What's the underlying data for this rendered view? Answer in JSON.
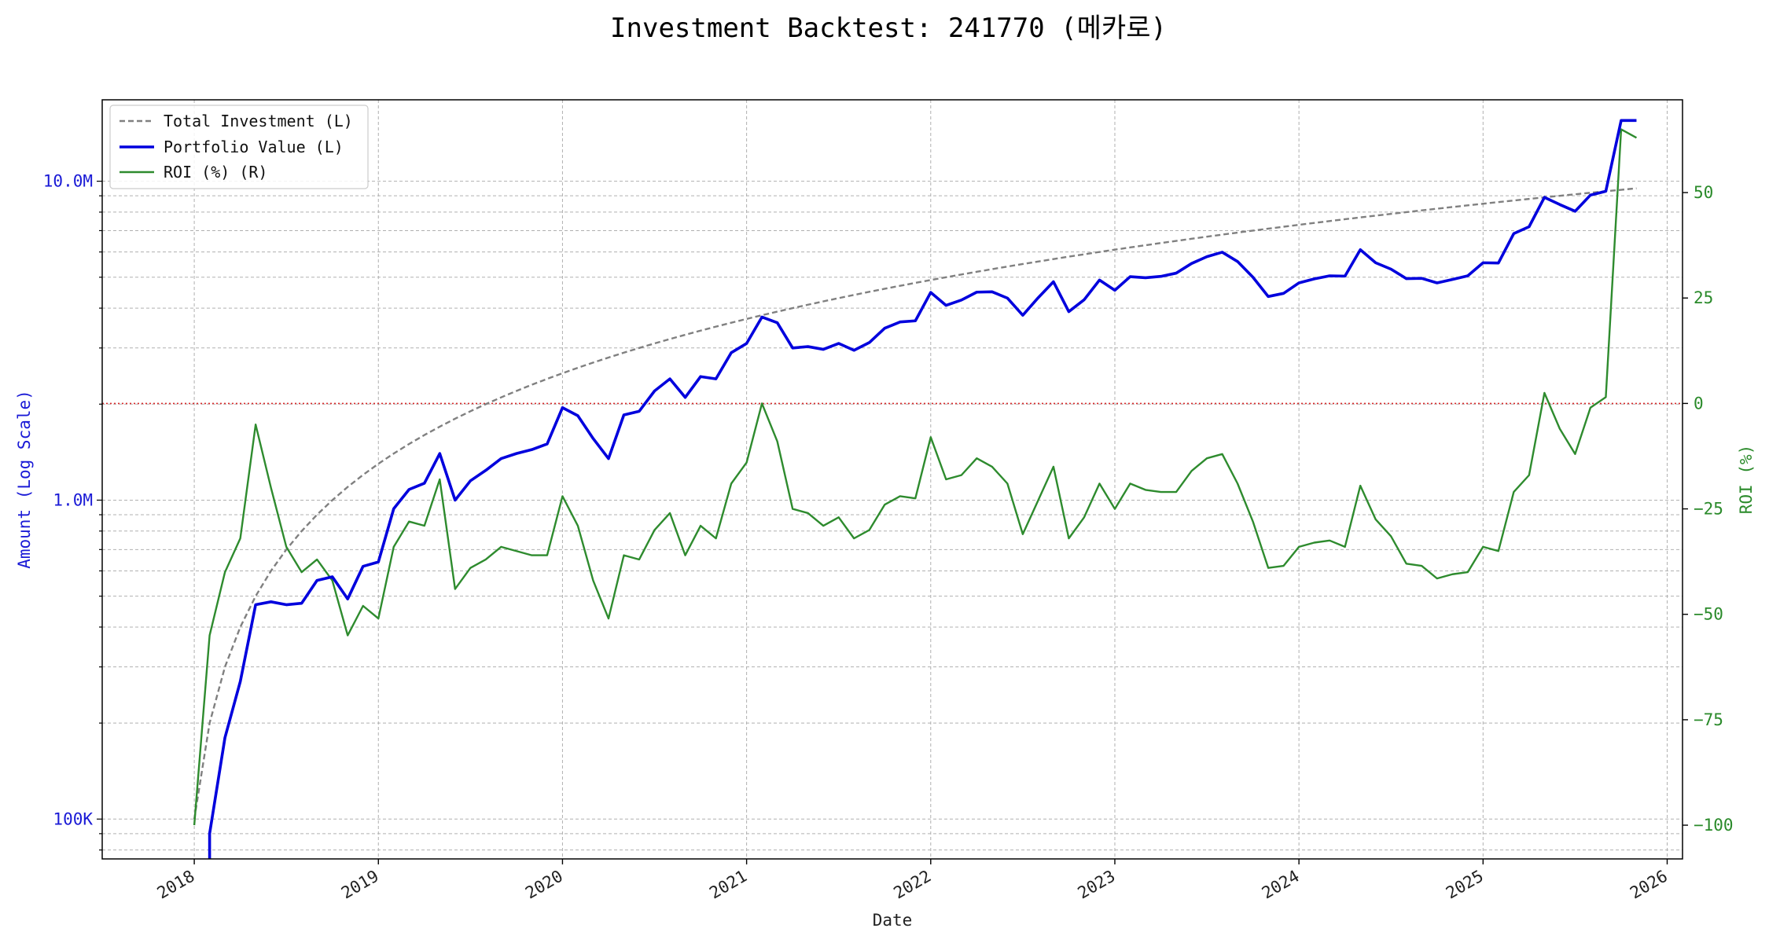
{
  "chart_data": {
    "type": "line",
    "title": "Investment Backtest: 241770 (메카로)",
    "xlabel": "Date",
    "ylabel_left": "Amount (Log Scale)",
    "ylabel_right": "ROI (%)",
    "left_scale": "log",
    "left_ylim": [
      75000,
      18000000
    ],
    "right_ylim": [
      -108,
      72
    ],
    "xlim": [
      "2017-07-01",
      "2026-02-01"
    ],
    "grid": true,
    "legend_position": "upper-left",
    "zero_line": {
      "axis": "right",
      "value": 0,
      "color": "#d62728",
      "style": "dotted"
    },
    "x_ticks": [
      "2018",
      "2019",
      "2020",
      "2021",
      "2022",
      "2023",
      "2024",
      "2025",
      "2026"
    ],
    "left_ticks": [
      {
        "value": 100000,
        "label": "100K"
      },
      {
        "value": 1000000,
        "label": "1.0M"
      },
      {
        "value": 10000000,
        "label": "10.0M"
      }
    ],
    "right_ticks": [
      {
        "value": -100,
        "label": "−100"
      },
      {
        "value": -75,
        "label": "−75"
      },
      {
        "value": -50,
        "label": "−50"
      },
      {
        "value": -25,
        "label": "−25"
      },
      {
        "value": 0,
        "label": "0"
      },
      {
        "value": 25,
        "label": "25"
      },
      {
        "value": 50,
        "label": "50"
      }
    ],
    "series": [
      {
        "name": "Total Investment (L)",
        "axis": "left",
        "color": "#808080",
        "style": "dashed",
        "x": [
          "2018-01",
          "2018-02",
          "2018-03",
          "2018-04",
          "2018-05",
          "2018-06",
          "2018-07",
          "2018-08",
          "2018-09",
          "2018-10",
          "2018-11",
          "2018-12",
          "2019-01",
          "2019-02",
          "2019-03",
          "2019-04",
          "2019-05",
          "2019-06",
          "2019-07",
          "2019-08",
          "2019-09",
          "2019-10",
          "2019-11",
          "2019-12",
          "2020-01",
          "2020-02",
          "2020-03",
          "2020-04",
          "2020-05",
          "2020-06",
          "2020-07",
          "2020-08",
          "2020-09",
          "2020-10",
          "2020-11",
          "2020-12",
          "2021-01",
          "2021-02",
          "2021-03",
          "2021-04",
          "2021-05",
          "2021-06",
          "2021-07",
          "2021-08",
          "2021-09",
          "2021-10",
          "2021-11",
          "2021-12",
          "2022-01",
          "2022-02",
          "2022-03",
          "2022-04",
          "2022-05",
          "2022-06",
          "2022-07",
          "2022-08",
          "2022-09",
          "2022-10",
          "2022-11",
          "2022-12",
          "2023-01",
          "2023-02",
          "2023-03",
          "2023-04",
          "2023-05",
          "2023-06",
          "2023-07",
          "2023-08",
          "2023-09",
          "2023-10",
          "2023-11",
          "2023-12",
          "2024-01",
          "2024-02",
          "2024-03",
          "2024-04",
          "2024-05",
          "2024-06",
          "2024-07",
          "2024-08",
          "2024-09",
          "2024-10",
          "2024-11",
          "2024-12",
          "2025-01",
          "2025-02",
          "2025-03",
          "2025-04",
          "2025-05",
          "2025-06",
          "2025-07",
          "2025-08",
          "2025-09",
          "2025-10",
          "2025-11"
        ],
        "values": [
          100000,
          200000,
          300000,
          400000,
          500000,
          600000,
          700000,
          800000,
          900000,
          1000000,
          1100000,
          1200000,
          1300000,
          1400000,
          1500000,
          1600000,
          1700000,
          1800000,
          1900000,
          2000000,
          2100000,
          2200000,
          2300000,
          2400000,
          2500000,
          2600000,
          2700000,
          2800000,
          2900000,
          3000000,
          3100000,
          3200000,
          3300000,
          3400000,
          3500000,
          3600000,
          3700000,
          3800000,
          3900000,
          4000000,
          4100000,
          4200000,
          4300000,
          4400000,
          4500000,
          4600000,
          4700000,
          4800000,
          4900000,
          5000000,
          5100000,
          5200000,
          5300000,
          5400000,
          5500000,
          5600000,
          5700000,
          5800000,
          5900000,
          6000000,
          6100000,
          6200000,
          6300000,
          6400000,
          6500000,
          6600000,
          6700000,
          6800000,
          6900000,
          7000000,
          7100000,
          7200000,
          7300000,
          7400000,
          7500000,
          7600000,
          7700000,
          7800000,
          7900000,
          8000000,
          8100000,
          8200000,
          8300000,
          8400000,
          8500000,
          8600000,
          8700000,
          8800000,
          8900000,
          9000000,
          9100000,
          9200000,
          9300000,
          9400000,
          9500000
        ]
      },
      {
        "name": "Portfolio Value (L)",
        "axis": "left",
        "color": "#0000dd",
        "style": "solid",
        "x": [
          "2018-01",
          "2018-02",
          "2018-03",
          "2018-04",
          "2018-05",
          "2018-06",
          "2018-07",
          "2018-08",
          "2018-09",
          "2018-10",
          "2018-11",
          "2018-12",
          "2019-01",
          "2019-02",
          "2019-03",
          "2019-04",
          "2019-05",
          "2019-06",
          "2019-07",
          "2019-08",
          "2019-09",
          "2019-10",
          "2019-11",
          "2019-12",
          "2020-01",
          "2020-02",
          "2020-03",
          "2020-04",
          "2020-05",
          "2020-06",
          "2020-07",
          "2020-08",
          "2020-09",
          "2020-10",
          "2020-11",
          "2020-12",
          "2021-01",
          "2021-02",
          "2021-03",
          "2021-04",
          "2021-05",
          "2021-06",
          "2021-07",
          "2021-08",
          "2021-09",
          "2021-10",
          "2021-11",
          "2021-12",
          "2022-01",
          "2022-02",
          "2022-03",
          "2022-04",
          "2022-05",
          "2022-06",
          "2022-07",
          "2022-08",
          "2022-09",
          "2022-10",
          "2022-11",
          "2022-12",
          "2023-01",
          "2023-02",
          "2023-03",
          "2023-04",
          "2023-05",
          "2023-06",
          "2023-07",
          "2023-08",
          "2023-09",
          "2023-10",
          "2023-11",
          "2023-12",
          "2024-01",
          "2024-02",
          "2024-03",
          "2024-04",
          "2024-05",
          "2024-06",
          "2024-07",
          "2024-08",
          "2024-09",
          "2024-10",
          "2024-11",
          "2024-12",
          "2025-01",
          "2025-02",
          "2025-03",
          "2025-04",
          "2025-05",
          "2025-06",
          "2025-07",
          "2025-08",
          "2025-09",
          "2025-10",
          "2025-11"
        ],
        "values": [
          null,
          90000,
          180000,
          270000,
          470000,
          480000,
          470000,
          475000,
          560000,
          575000,
          490000,
          620000,
          640000,
          940000,
          1080000,
          1130000,
          1400000,
          1000000,
          1150000,
          1240000,
          1350000,
          1400000,
          1440000,
          1500000,
          1950000,
          1840000,
          1560000,
          1350000,
          1850000,
          1900000,
          2200000,
          2400000,
          2100000,
          2440000,
          2400000,
          2900000,
          3100000,
          3750000,
          3600000,
          3000000,
          3030000,
          2970000,
          3100000,
          2950000,
          3120000,
          3460000,
          3620000,
          3650000,
          4480000,
          4080000,
          4240000,
          4490000,
          4500000,
          4300000,
          3800000,
          4310000,
          4840000,
          3900000,
          4250000,
          4900000,
          4550000,
          5020000,
          4980000,
          5030000,
          5150000,
          5520000,
          5800000,
          5990000,
          5600000,
          5000000,
          4350000,
          4450000,
          4800000,
          4940000,
          5050000,
          5040000,
          6100000,
          5550000,
          5300000,
          4950000,
          4960000,
          4800000,
          4920000,
          5050000,
          5550000,
          5540000,
          6850000,
          7200000,
          8900000,
          8450000,
          8050000,
          9050000,
          9300000,
          15500000,
          15500000
        ]
      },
      {
        "name": "ROI (%) (R)",
        "axis": "right",
        "color": "#2e8b2e",
        "style": "solid",
        "x": [
          "2018-01",
          "2018-02",
          "2018-03",
          "2018-04",
          "2018-05",
          "2018-06",
          "2018-07",
          "2018-08",
          "2018-09",
          "2018-10",
          "2018-11",
          "2018-12",
          "2019-01",
          "2019-02",
          "2019-03",
          "2019-04",
          "2019-05",
          "2019-06",
          "2019-07",
          "2019-08",
          "2019-09",
          "2019-10",
          "2019-11",
          "2019-12",
          "2020-01",
          "2020-02",
          "2020-03",
          "2020-04",
          "2020-05",
          "2020-06",
          "2020-07",
          "2020-08",
          "2020-09",
          "2020-10",
          "2020-11",
          "2020-12",
          "2021-01",
          "2021-02",
          "2021-03",
          "2021-04",
          "2021-05",
          "2021-06",
          "2021-07",
          "2021-08",
          "2021-09",
          "2021-10",
          "2021-11",
          "2021-12",
          "2022-01",
          "2022-02",
          "2022-03",
          "2022-04",
          "2022-05",
          "2022-06",
          "2022-07",
          "2022-08",
          "2022-09",
          "2022-10",
          "2022-11",
          "2022-12",
          "2023-01",
          "2023-02",
          "2023-03",
          "2023-04",
          "2023-05",
          "2023-06",
          "2023-07",
          "2023-08",
          "2023-09",
          "2023-10",
          "2023-11",
          "2023-12",
          "2024-01",
          "2024-02",
          "2024-03",
          "2024-04",
          "2024-05",
          "2024-06",
          "2024-07",
          "2024-08",
          "2024-09",
          "2024-10",
          "2024-11",
          "2024-12",
          "2025-01",
          "2025-02",
          "2025-03",
          "2025-04",
          "2025-05",
          "2025-06",
          "2025-07",
          "2025-08",
          "2025-09",
          "2025-10",
          "2025-11"
        ],
        "values": [
          -100,
          -55,
          -40,
          -32,
          -5,
          -20,
          -34,
          -40,
          -37,
          -42,
          -55,
          -48,
          -51,
          -34,
          -28,
          -29,
          -18,
          -44,
          -39,
          -37,
          -34,
          -35,
          -36,
          -36,
          -22,
          -29,
          -42,
          -51,
          -36,
          -37,
          -30,
          -26,
          -36,
          -29,
          -32,
          -19,
          -14,
          0,
          -9,
          -25,
          -26,
          -29,
          -27,
          -32,
          -30,
          -24,
          -22,
          -22.5,
          -8,
          -18,
          -17,
          -13,
          -15,
          -19,
          -31,
          -23,
          -15,
          -32,
          -27,
          -19,
          -25,
          -19,
          -20.5,
          -21,
          -21,
          -16,
          -13,
          -12,
          -19,
          -28,
          -39,
          -38.5,
          -34,
          -33,
          -32.5,
          -34,
          -19.5,
          -27.5,
          -31.5,
          -38,
          -38.5,
          -41.5,
          -40.5,
          -40,
          -34,
          -35,
          -21,
          -17,
          2.5,
          -6,
          -12,
          -1,
          1.5,
          65,
          63
        ]
      }
    ]
  },
  "legend": [
    {
      "label": "Total Investment (L)",
      "color": "#808080",
      "style": "dashed"
    },
    {
      "label": "Portfolio Value (L)",
      "color": "#0000dd",
      "style": "solid"
    },
    {
      "label": "ROI (%) (R)",
      "color": "#2e8b2e",
      "style": "solid"
    }
  ]
}
